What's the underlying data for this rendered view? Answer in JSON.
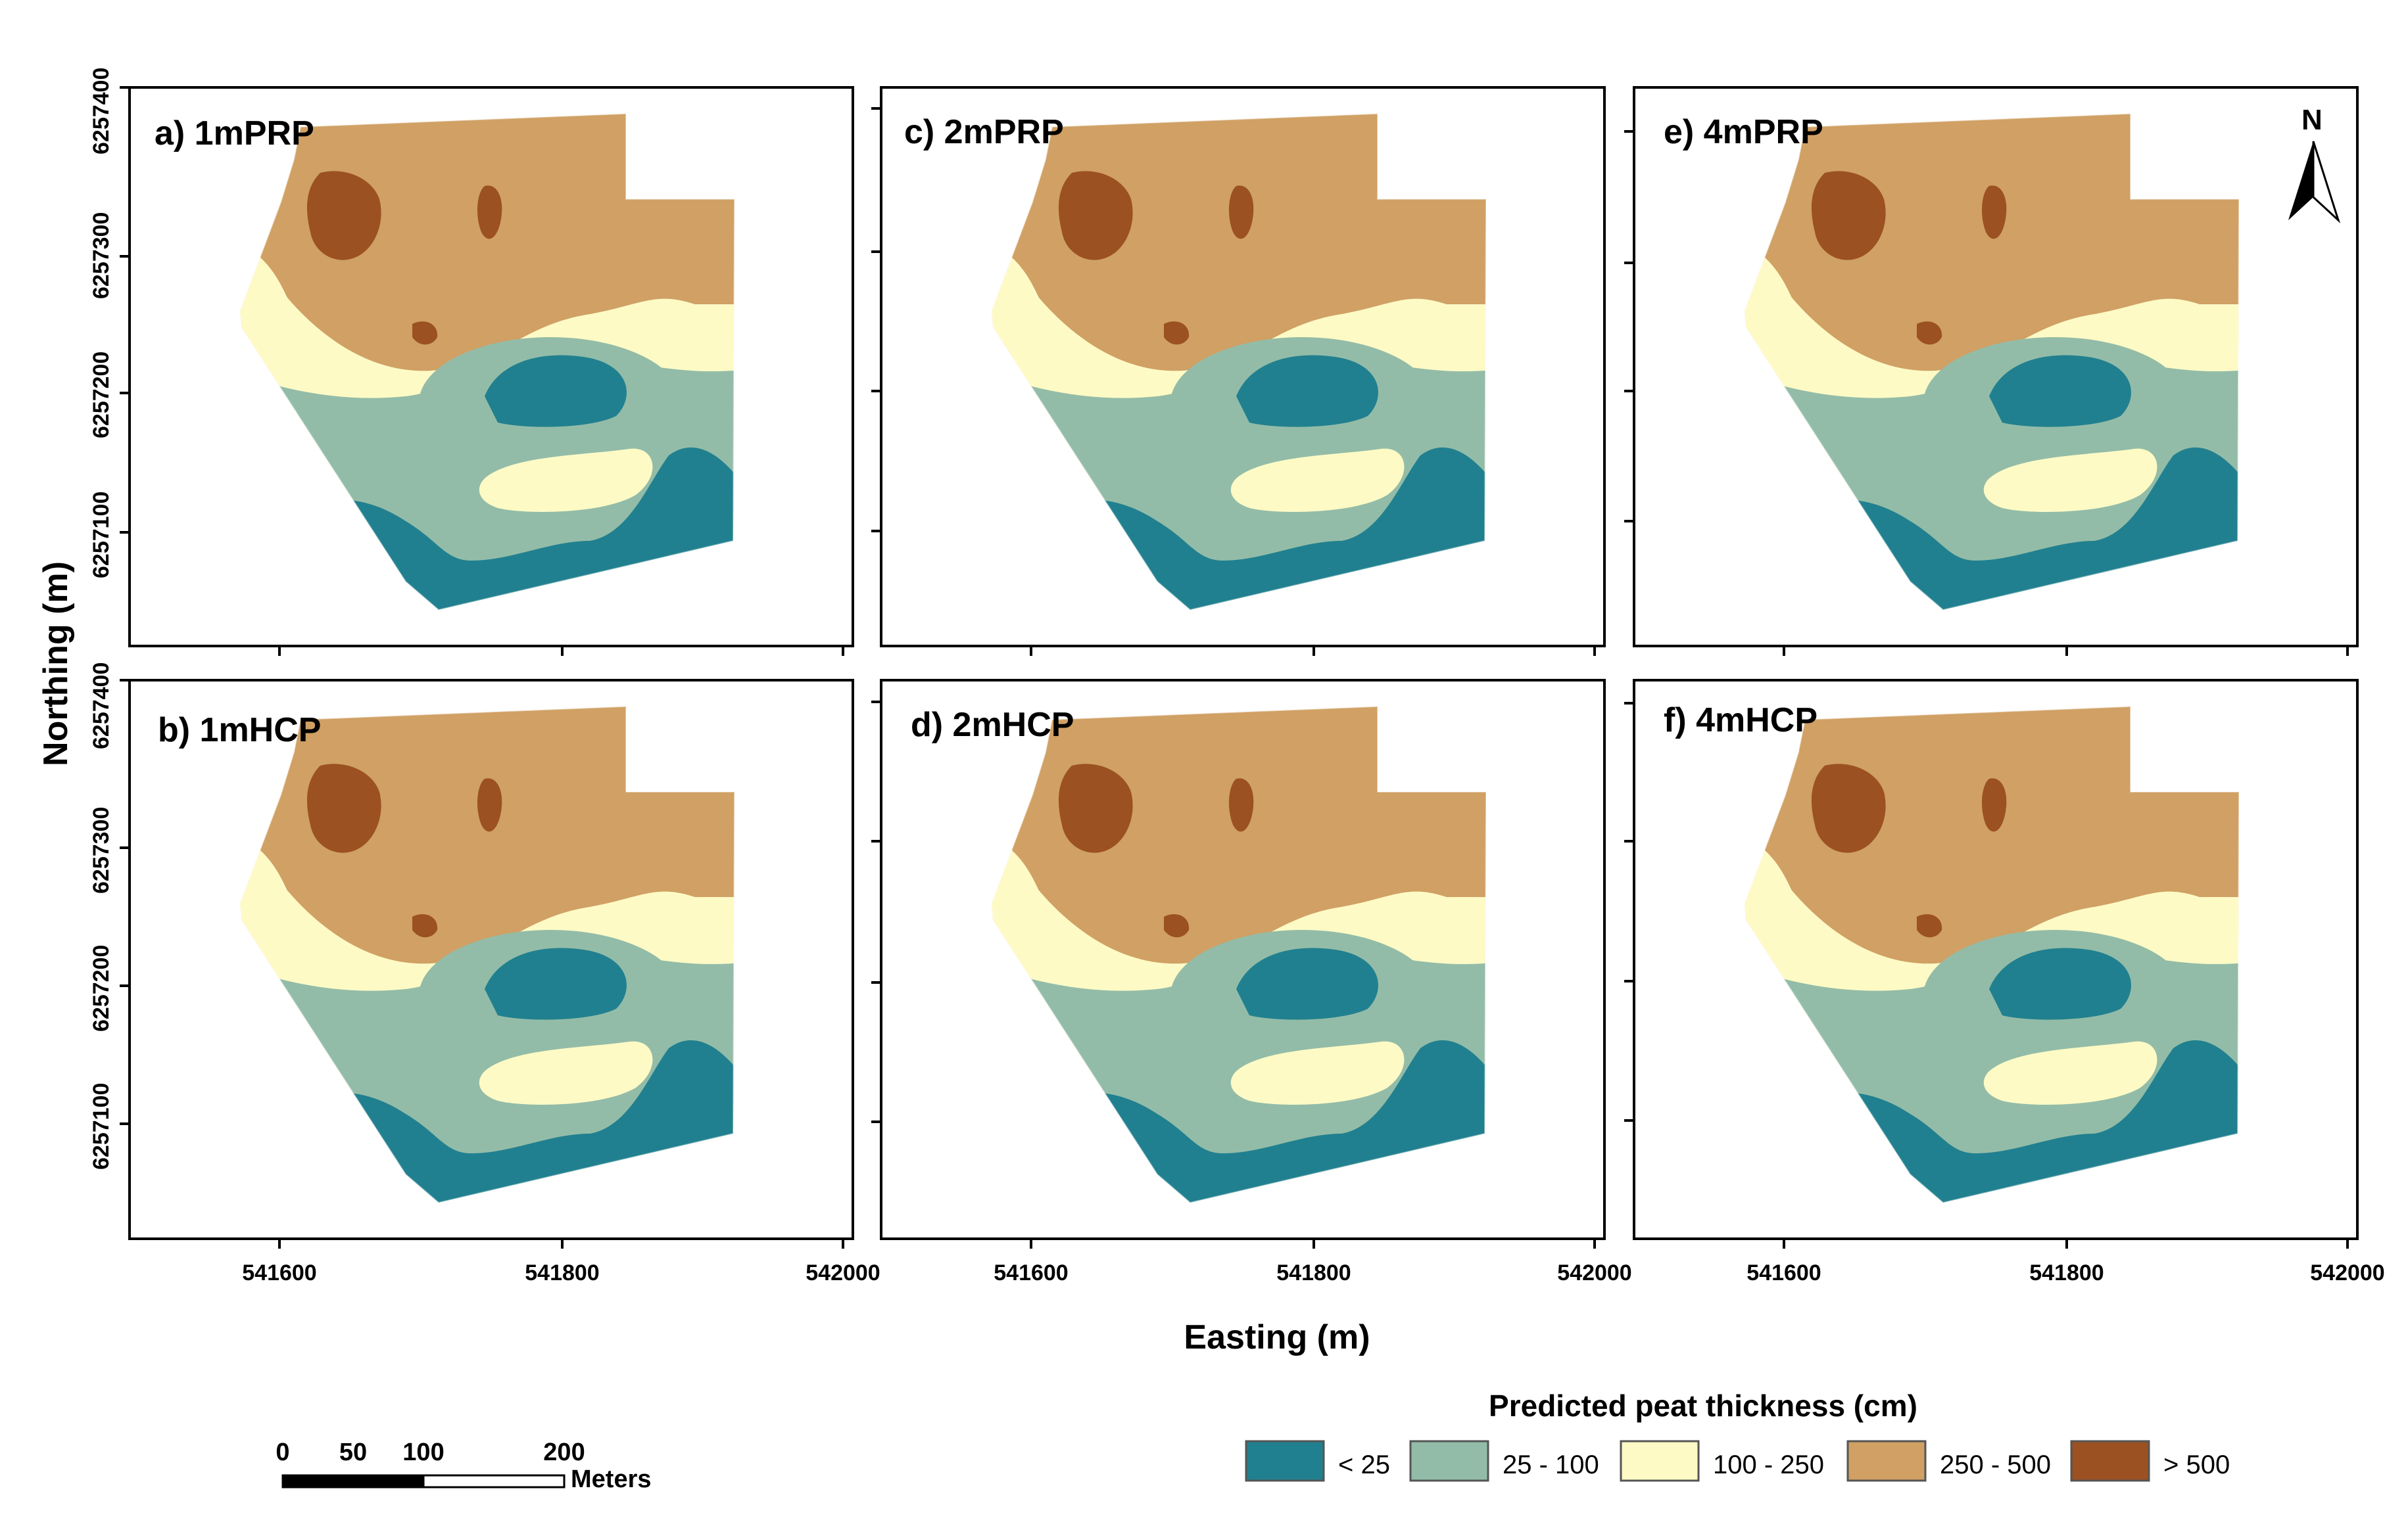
{
  "figure": {
    "x_axis_label": "Easting (m)",
    "y_axis_label": "Northing (m)"
  },
  "panels": [
    {
      "id": "a",
      "title": "a) 1mPRP"
    },
    {
      "id": "b",
      "title": "b) 1mHCP"
    },
    {
      "id": "c",
      "title": "c) 2mPRP"
    },
    {
      "id": "d",
      "title": "d) 2mHCP"
    },
    {
      "id": "e",
      "title": "e) 4mPRP"
    },
    {
      "id": "f",
      "title": "f) 4mHCP"
    }
  ],
  "x_ticks": [
    "541600",
    "541800",
    "542000"
  ],
  "y_ticks": [
    "6257400",
    "6257300",
    "6257200",
    "6257100"
  ],
  "north_arrow": {
    "label": "N",
    "icon": "north-arrow-icon"
  },
  "scale_bar": {
    "labels": [
      "0",
      "50",
      "100",
      "200"
    ],
    "unit": "Meters"
  },
  "legend": {
    "title": "Predicted peat thickness (cm)",
    "items": [
      {
        "label": "< 25",
        "color": "#21808f"
      },
      {
        "label": "25 - 100",
        "color": "#93bca8"
      },
      {
        "label": "100 - 250",
        "color": "#fdfac5"
      },
      {
        "label": "250 - 500",
        "color": "#d0a064"
      },
      {
        "label": "> 500",
        "color": "#9b5122"
      }
    ]
  }
}
